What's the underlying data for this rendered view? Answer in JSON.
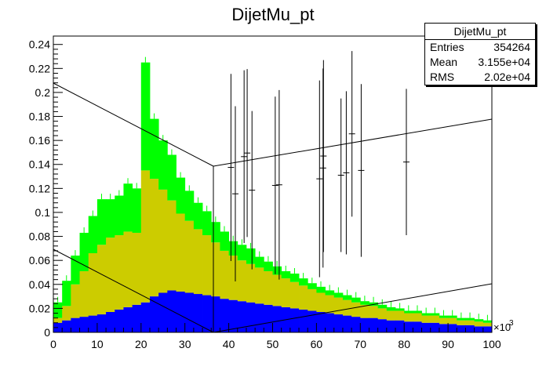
{
  "title": "DijetMu_pt",
  "stats": {
    "header": "DijetMu_pt",
    "rows": [
      {
        "label": "Entries",
        "value": "354264"
      },
      {
        "label": "Mean",
        "value": "3.155e+04"
      },
      {
        "label": "RMS",
        "value": "2.02e+04"
      }
    ]
  },
  "colors": {
    "green": "#00ff00",
    "olive": "#cccc00",
    "blue": "#0000ff",
    "axis": "#000000"
  },
  "chart_data": {
    "type": "bar",
    "stacked": true,
    "x_range": [
      0,
      100
    ],
    "y_range": [
      0,
      0.247
    ],
    "x_ticks": [
      0,
      10,
      20,
      30,
      40,
      50,
      60,
      70,
      80,
      90,
      100
    ],
    "y_ticks": [
      0,
      0.02,
      0.04,
      0.06,
      0.08,
      0.1,
      0.12,
      0.14,
      0.16,
      0.18,
      0.2,
      0.22,
      0.24
    ],
    "x_tick_labels": [
      "0",
      "10",
      "20",
      "30",
      "40",
      "50",
      "60",
      "70",
      "80",
      "90",
      "100"
    ],
    "y_tick_labels": [
      "0",
      "0.02",
      "0.04",
      "0.06",
      "0.08",
      "0.1",
      "0.12",
      "0.14",
      "0.16",
      "0.18",
      "0.2",
      "0.22",
      "0.24"
    ],
    "x_multiplier": "×10",
    "x_multiplier_exp": "3",
    "bin_width": 2,
    "bin_starts": [
      0,
      2,
      4,
      6,
      8,
      10,
      12,
      14,
      16,
      18,
      20,
      22,
      24,
      26,
      28,
      30,
      32,
      34,
      36,
      38,
      40,
      42,
      44,
      46,
      48,
      50,
      52,
      54,
      56,
      58,
      60,
      62,
      64,
      66,
      68,
      70,
      72,
      74,
      76,
      78,
      80,
      82,
      84,
      86,
      88,
      90,
      92,
      94,
      96,
      98
    ],
    "series": [
      {
        "color": "#0000ff",
        "values": [
          0.008,
          0.01,
          0.012,
          0.013,
          0.014,
          0.015,
          0.017,
          0.019,
          0.021,
          0.023,
          0.025,
          0.03,
          0.033,
          0.035,
          0.034,
          0.033,
          0.032,
          0.031,
          0.03,
          0.028,
          0.027,
          0.026,
          0.025,
          0.024,
          0.023,
          0.022,
          0.021,
          0.02,
          0.019,
          0.018,
          0.017,
          0.016,
          0.015,
          0.014,
          0.013,
          0.012,
          0.012,
          0.011,
          0.01,
          0.01,
          0.009,
          0.009,
          0.008,
          0.008,
          0.007,
          0.007,
          0.006,
          0.006,
          0.005,
          0.005
        ]
      },
      {
        "color": "#cccc00",
        "values": [
          0.004,
          0.012,
          0.028,
          0.038,
          0.052,
          0.058,
          0.062,
          0.062,
          0.063,
          0.06,
          0.11,
          0.098,
          0.086,
          0.075,
          0.065,
          0.06,
          0.054,
          0.05,
          0.045,
          0.04,
          0.037,
          0.034,
          0.032,
          0.03,
          0.028,
          0.026,
          0.024,
          0.022,
          0.02,
          0.018,
          0.016,
          0.015,
          0.014,
          0.013,
          0.012,
          0.011,
          0.01,
          0.009,
          0.008,
          0.008,
          0.007,
          0.007,
          0.006,
          0.006,
          0.005,
          0.005,
          0.004,
          0.004,
          0.004,
          0.003
        ]
      },
      {
        "color": "#00ff00",
        "values": [
          0.013,
          0.021,
          0.024,
          0.032,
          0.031,
          0.038,
          0.032,
          0.033,
          0.04,
          0.037,
          0.09,
          0.05,
          0.041,
          0.038,
          0.03,
          0.025,
          0.022,
          0.02,
          0.017,
          0.016,
          0.012,
          0.013,
          0.013,
          0.009,
          0.008,
          0.007,
          0.006,
          0.007,
          0.006,
          0.005,
          0.005,
          0.004,
          0.004,
          0.004,
          0.004,
          0.003,
          0.003,
          0.003,
          0.003,
          0.002,
          0.002,
          0.002,
          0.002,
          0.002,
          0.002,
          0.002,
          0.002,
          0.002,
          0.002,
          0.002
        ]
      }
    ],
    "points": [
      {
        "x": 40.5,
        "y": 0.1375,
        "err": 0.078
      },
      {
        "x": 41.5,
        "y": 0.1155,
        "err": 0.073
      },
      {
        "x": 43.5,
        "y": 0.1465,
        "err": 0.072
      },
      {
        "x": 44.2,
        "y": 0.1495,
        "err": 0.07
      },
      {
        "x": 45.3,
        "y": 0.1185,
        "err": 0.066
      },
      {
        "x": 50.6,
        "y": 0.1225,
        "err": 0.074
      },
      {
        "x": 51.5,
        "y": 0.123,
        "err": 0.079
      },
      {
        "x": 60.7,
        "y": 0.128,
        "err": 0.082
      },
      {
        "x": 61.5,
        "y": 0.137,
        "err": 0.083
      },
      {
        "x": 61.6,
        "y": 0.147,
        "err": 0.08
      },
      {
        "x": 65.6,
        "y": 0.131,
        "err": 0.064
      },
      {
        "x": 66.8,
        "y": 0.133,
        "err": 0.068
      },
      {
        "x": 68.1,
        "y": 0.1655,
        "err": 0.069
      },
      {
        "x": 70.2,
        "y": 0.135,
        "err": 0.072
      },
      {
        "x": 80.5,
        "y": 0.142,
        "err": 0.061
      }
    ]
  }
}
